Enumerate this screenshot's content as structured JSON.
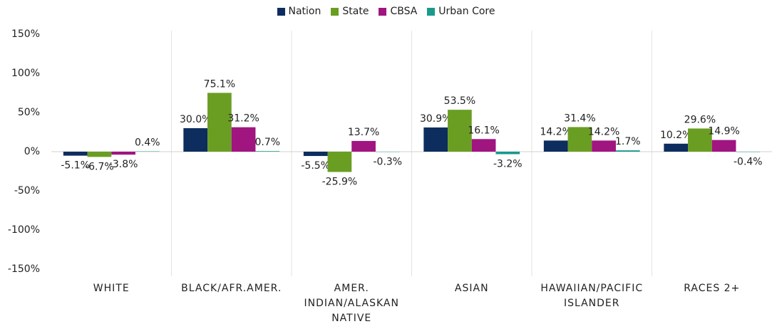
{
  "chart_data": {
    "type": "bar",
    "categories": [
      "WHITE",
      "BLACK/AFR.AMER.",
      "AMER. INDIAN/ALASKAN NATIVE",
      "ASIAN",
      "HAWAIIAN/PACIFIC ISLANDER",
      "RACES 2+"
    ],
    "series": [
      {
        "name": "Nation",
        "color": "#0d2d5e",
        "values": [
          -5.1,
          30.0,
          -5.5,
          30.9,
          14.2,
          10.2
        ],
        "value_labels": [
          "-5.1%",
          "30.0%",
          "-5.5%",
          "30.9%",
          "14.2%",
          "10.2%"
        ]
      },
      {
        "name": "State",
        "color": "#6a9e23",
        "values": [
          -6.7,
          75.1,
          -25.9,
          53.5,
          31.4,
          29.6
        ],
        "value_labels": [
          "-6.7%",
          "75.1%",
          "-25.9%",
          "53.5%",
          "31.4%",
          "29.6%"
        ]
      },
      {
        "name": "CBSA",
        "color": "#a0157f",
        "values": [
          -3.8,
          31.2,
          13.7,
          16.1,
          14.2,
          14.9
        ],
        "value_labels": [
          "-3.8%",
          "31.2%",
          "13.7%",
          "16.1%",
          "14.2%",
          "14.9%"
        ]
      },
      {
        "name": "Urban Core",
        "color": "#1a9a8a",
        "values": [
          0.4,
          0.7,
          -0.3,
          -3.2,
          1.7,
          -0.4
        ],
        "value_labels": [
          "0.4%",
          "0.7%",
          "-0.3%",
          "-3.2%",
          "1.7%",
          "-0.4%"
        ]
      }
    ],
    "ylim": [
      -150,
      150
    ],
    "yticks": [
      {
        "value": 150,
        "label": "150%"
      },
      {
        "value": 100,
        "label": "100%"
      },
      {
        "value": 50,
        "label": "50%"
      },
      {
        "value": 0,
        "label": "0%"
      },
      {
        "value": -50,
        "label": "-50%"
      },
      {
        "value": -100,
        "label": "-100%"
      },
      {
        "value": -150,
        "label": "-150%"
      }
    ],
    "legend": "top"
  }
}
